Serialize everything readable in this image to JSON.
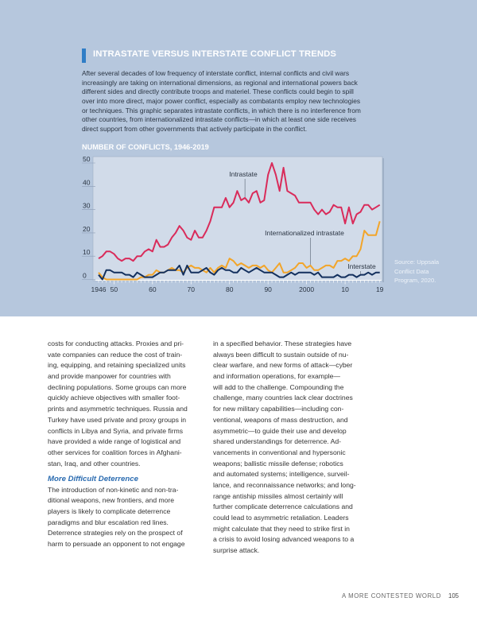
{
  "panel": {
    "title": "INTRASTATE VERSUS INTERSTATE CONFLICT TRENDS",
    "intro_lines": [
      "After several decades of low frequency of interstate conflict, internal conflicts and civil wars",
      "increasingly are taking on international dimensions, as regional and international powers back",
      "different sides and directly contribute troops and materiel. These conflicts could begin to spill",
      "over into more direct, major power conflict, especially as combatants employ new technologies",
      "or techniques. This graphic separates intrastate conflicts, in which there is no interference from",
      "other countries, from internationalized intrastate conflicts—in which at least one side receives",
      "direct support from other governments that actively participate in the conflict."
    ],
    "source_lines": [
      "Source: Uppsala",
      "Conflict Data",
      "Program, 2020."
    ]
  },
  "chart_data": {
    "type": "line",
    "title": "NUMBER OF CONFLICTS, 1946-2019",
    "xlabel": "",
    "ylabel": "",
    "xlim": [
      1946,
      2019
    ],
    "ylim": [
      0,
      50
    ],
    "yticks": [
      0,
      10,
      20,
      30,
      40,
      50
    ],
    "xticks": [
      {
        "v": 1946,
        "l": "1946"
      },
      {
        "v": 1950,
        "l": "50"
      },
      {
        "v": 1960,
        "l": "60"
      },
      {
        "v": 1970,
        "l": "70"
      },
      {
        "v": 1980,
        "l": "80"
      },
      {
        "v": 1990,
        "l": "90"
      },
      {
        "v": 2000,
        "l": "2000"
      },
      {
        "v": 2010,
        "l": "10"
      },
      {
        "v": 2019,
        "l": "19"
      }
    ],
    "x_start": 1946,
    "series": [
      {
        "name": "Intrastate",
        "color": "#d92b5a",
        "label_year": 1984,
        "values": [
          9,
          10,
          12,
          12,
          11,
          9,
          8,
          9,
          9,
          8,
          10,
          10,
          12,
          13,
          12,
          17,
          14,
          14,
          15,
          18,
          20,
          23,
          21,
          18,
          17,
          21,
          18,
          18,
          21,
          25,
          31,
          31,
          31,
          35,
          31,
          33,
          38,
          34,
          35,
          33,
          37,
          38,
          33,
          34,
          45,
          50,
          45,
          38,
          48,
          38,
          37,
          36,
          33,
          33,
          33,
          33,
          30,
          28,
          30,
          28,
          29,
          32,
          31,
          31,
          24,
          31,
          24,
          28,
          29,
          32,
          32,
          30,
          31,
          32
        ]
      },
      {
        "name": "Internationalized intrastate",
        "color": "#f2a52a",
        "label_year": 2001,
        "values": [
          3,
          1,
          0,
          0,
          0,
          0,
          0,
          0,
          0,
          0,
          0,
          1,
          1,
          2,
          2,
          4,
          3,
          3,
          4,
          5,
          4,
          4,
          3,
          5,
          6,
          5,
          5,
          4,
          3,
          5,
          3,
          5,
          6,
          5,
          9,
          8,
          6,
          7,
          6,
          5,
          6,
          6,
          5,
          6,
          4,
          3,
          5,
          7,
          3,
          3,
          4,
          5,
          7,
          7,
          5,
          6,
          4,
          4,
          5,
          6,
          6,
          5,
          8,
          8,
          9,
          8,
          10,
          10,
          13,
          21,
          19,
          19,
          19,
          25
        ]
      },
      {
        "name": "Interstate",
        "color": "#13305e",
        "label_year": 2014,
        "values": [
          2,
          0,
          4,
          4,
          3,
          3,
          3,
          2,
          2,
          1,
          3,
          2,
          1,
          1,
          1,
          2,
          3,
          3,
          4,
          4,
          4,
          6,
          2,
          6,
          3,
          3,
          3,
          4,
          5,
          3,
          2,
          4,
          5,
          4,
          4,
          3,
          3,
          5,
          4,
          3,
          4,
          5,
          4,
          3,
          3,
          3,
          2,
          1,
          1,
          2,
          3,
          2,
          3,
          3,
          3,
          3,
          2,
          3,
          1,
          1,
          1,
          1,
          2,
          1,
          1,
          2,
          2,
          1,
          2,
          2,
          3,
          2,
          3,
          3
        ]
      }
    ]
  },
  "article": {
    "col1_lines": [
      "costs for conducting attacks. Proxies and pri-",
      "vate companies can reduce the cost of train-",
      "ing, equipping, and retaining specialized units",
      "and provide manpower for countries with",
      "declining populations. Some groups can more",
      "quickly achieve objectives with smaller foot-",
      "prints and asymmetric techniques. Russia and",
      "Turkey have used private and proxy groups in",
      "conflicts in Libya and Syria, and private firms",
      "have provided a wide range of logistical and",
      "other services for coalition forces in Afghani-",
      "stan, Iraq, and other countries."
    ],
    "heading": "More Difficult Deterrence",
    "col1b_lines": [
      "The introduction of non-kinetic and non-tra-",
      "ditional weapons, new frontiers, and more",
      "players is likely to complicate deterrence",
      "paradigms and blur escalation red lines.",
      "Deterrence strategies rely on the prospect of",
      "harm to persuade an opponent to not engage"
    ],
    "col2_lines": [
      "in a specified behavior. These strategies have",
      "always been difficult to sustain outside of nu-",
      "clear warfare, and new forms of attack—cyber",
      "and information operations, for example—",
      "will add to the challenge. Compounding the",
      "challenge, many countries lack clear doctrines",
      "for new military capabilities—including con-",
      "ventional, weapons of mass destruction, and",
      "asymmetric—to guide their use and develop",
      "shared understandings for deterrence. Ad-",
      "vancements in conventional and hypersonic",
      "weapons; ballistic missile defense; robotics",
      "and automated systems; intelligence, surveil-",
      "lance, and reconnaissance networks; and long-",
      "range antiship missiles almost certainly will",
      "further complicate deterrence calculations and",
      "could lead to asymmetric retaliation. Leaders",
      "might calculate that they need to strike first in",
      "a crisis to avoid losing advanced weapons to a",
      "surprise attack."
    ]
  },
  "footer": {
    "running_title": "A MORE CONTESTED WORLD",
    "page_number": "105"
  }
}
